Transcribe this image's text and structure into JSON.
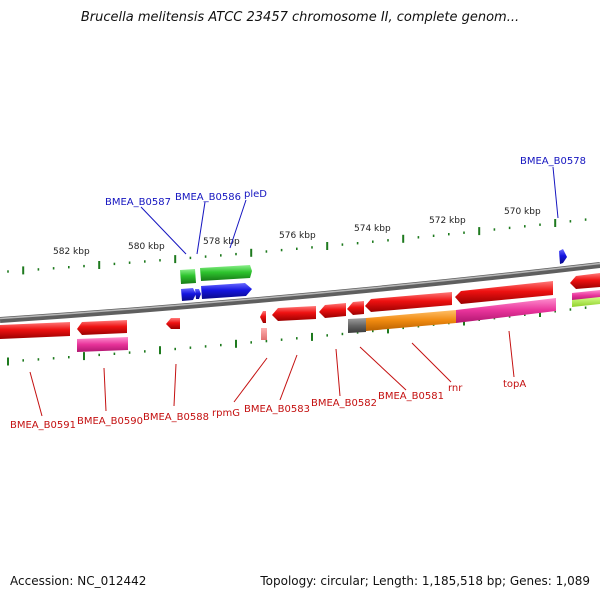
{
  "title": "Brucella melitensis ATCC 23457 chromosome II, complete genom...",
  "scale_labels": [
    "582 kbp",
    "580 kbp",
    "578 kbp",
    "576 kbp",
    "574 kbp",
    "572 kbp",
    "570 kbp"
  ],
  "top_labels": [
    {
      "key": "B0587",
      "text": "BMEA_B0587"
    },
    {
      "key": "B0586",
      "text": "BMEA_B0586"
    },
    {
      "key": "pleD",
      "text": "pleD"
    },
    {
      "key": "B0578",
      "text": "BMEA_B0578"
    }
  ],
  "bottom_labels": [
    {
      "key": "B0591",
      "text": "BMEA_B0591"
    },
    {
      "key": "B0590",
      "text": "BMEA_B0590"
    },
    {
      "key": "B0588",
      "text": "BMEA_B0588"
    },
    {
      "key": "rpmG",
      "text": "rpmG"
    },
    {
      "key": "B0583",
      "text": "BMEA_B0583"
    },
    {
      "key": "B0582",
      "text": "BMEA_B0582"
    },
    {
      "key": "B0581",
      "text": "BMEA_B0581"
    },
    {
      "key": "rnr",
      "text": "rnr"
    },
    {
      "key": "topA",
      "text": "topA"
    }
  ],
  "colors": {
    "backbone": "#7a7a7a",
    "gene_red": "#ee1111",
    "rna_magenta": "#e8339a",
    "green": "#2ec42e",
    "blue": "#1515e0",
    "orange": "#f08a10",
    "gray": "#666666",
    "tick": "#1e7a1e",
    "label_top": "#1515c0",
    "label_bottom": "#c41010"
  },
  "accession_label": "Accession: NC_012442",
  "footer_info": "Topology: circular; Length: 1,185,518 bp; Genes: 1,089"
}
